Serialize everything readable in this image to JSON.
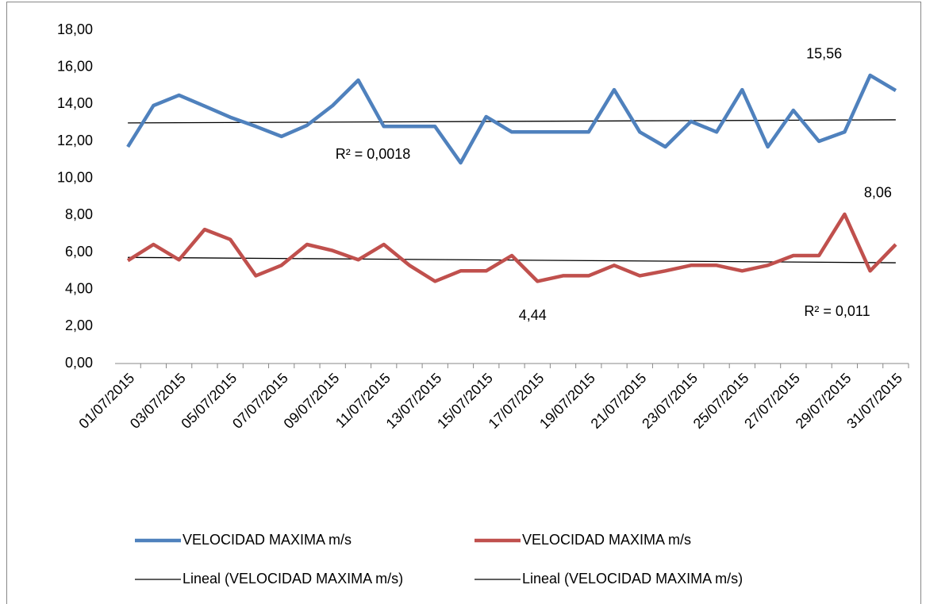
{
  "chart_data": {
    "type": "line",
    "categories": [
      "01/07/2015",
      null,
      "03/07/2015",
      null,
      "05/07/2015",
      null,
      "07/07/2015",
      null,
      "09/07/2015",
      null,
      "11/07/2015",
      null,
      "13/07/2015",
      null,
      "15/07/2015",
      null,
      "17/07/2015",
      null,
      "19/07/2015",
      null,
      "21/07/2015",
      null,
      "23/07/2015",
      null,
      "25/07/2015",
      null,
      "27/07/2015",
      null,
      "29/07/2015",
      null,
      "31/07/2015"
    ],
    "series": [
      {
        "name": "VELOCIDAD MAXIMA m/s",
        "color": "#4f81bd",
        "values": [
          11.7,
          13.93,
          14.49,
          13.9,
          13.3,
          12.8,
          12.26,
          12.86,
          13.93,
          15.3,
          12.8,
          12.8,
          12.8,
          10.84,
          13.33,
          12.5,
          12.5,
          12.5,
          12.5,
          14.78,
          12.5,
          11.7,
          13.07,
          12.5,
          14.78,
          11.7,
          13.67,
          12.0,
          12.5,
          15.56,
          14.74
        ],
        "value_labels": [
          null,
          null,
          null,
          null,
          null,
          null,
          null,
          null,
          null,
          null,
          null,
          null,
          null,
          null,
          null,
          null,
          null,
          null,
          null,
          null,
          null,
          null,
          null,
          null,
          null,
          null,
          null,
          null,
          null,
          "15,56",
          null
        ]
      },
      {
        "name": "VELOCIDAD MAXIMA m/s",
        "color": "#c0504d",
        "values": [
          5.56,
          6.43,
          5.6,
          7.24,
          6.7,
          4.74,
          5.3,
          6.43,
          6.1,
          5.6,
          6.43,
          5.3,
          4.44,
          5.0,
          5.0,
          5.83,
          4.44,
          4.74,
          4.74,
          5.3,
          4.74,
          5.0,
          5.3,
          5.3,
          5.0,
          5.3,
          5.83,
          5.83,
          8.06,
          5.0,
          6.43
        ],
        "value_labels": [
          null,
          null,
          null,
          null,
          null,
          null,
          null,
          null,
          null,
          null,
          null,
          null,
          null,
          null,
          null,
          null,
          "4,44",
          null,
          null,
          null,
          null,
          null,
          null,
          null,
          null,
          null,
          null,
          null,
          "8,06",
          null,
          null
        ]
      }
    ],
    "trendlines": [
      {
        "name": "Lineal (VELOCIDAD MAXIMA m/s)",
        "color": "#000000",
        "values": [
          12.99,
          13.16
        ],
        "annotation": "R² = 0,0018"
      },
      {
        "name": "Lineal (VELOCIDAD MAXIMA m/s)",
        "color": "#000000",
        "values": [
          5.73,
          5.44
        ],
        "annotation": "R² = 0,011"
      }
    ],
    "ylim": [
      0,
      18
    ],
    "yticks": [
      {
        "value": 0,
        "label": "0,00"
      },
      {
        "value": 2,
        "label": "2,00"
      },
      {
        "value": 4,
        "label": "4,00"
      },
      {
        "value": 6,
        "label": "6,00"
      },
      {
        "value": 8,
        "label": "8,00"
      },
      {
        "value": 10,
        "label": "10,00"
      },
      {
        "value": 12,
        "label": "12,00"
      },
      {
        "value": 14,
        "label": "14,00"
      },
      {
        "value": 16,
        "label": "16,00"
      },
      {
        "value": 18,
        "label": "18,00"
      }
    ],
    "grid": false
  }
}
